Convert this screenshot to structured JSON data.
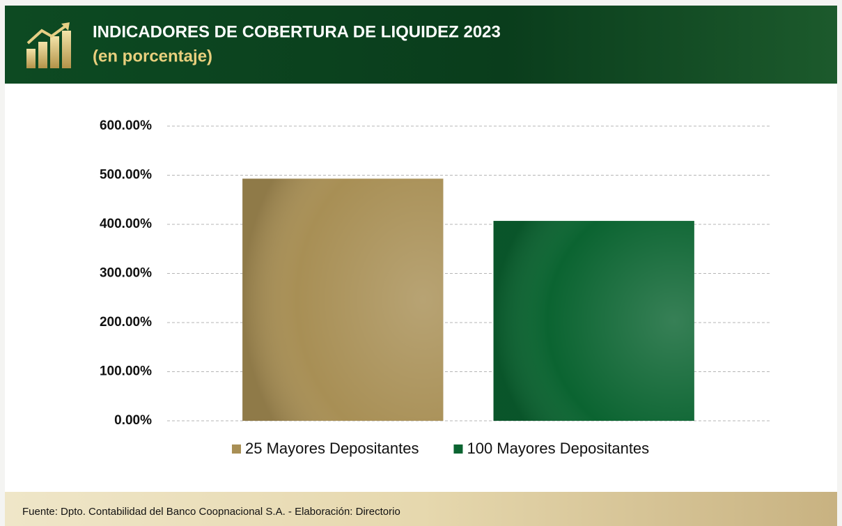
{
  "chart_data": {
    "type": "bar",
    "title": "INDICADORES DE COBERTURA DE LIQUIDEZ 2023",
    "subtitle": "(en porcentaje)",
    "categories": [
      null
    ],
    "series": [
      {
        "name": "25 Mayores Depositantes",
        "color": "#a88f55",
        "values": [
          493
        ]
      },
      {
        "name": "100 Mayores Depositantes",
        "color": "#0b6431",
        "values": [
          407
        ]
      }
    ],
    "ylim": [
      0,
      600
    ],
    "yticks": [
      {
        "value": 0,
        "label": "0.00%"
      },
      {
        "value": 100,
        "label": "100.00%"
      },
      {
        "value": 200,
        "label": "200.00%"
      },
      {
        "value": 300,
        "label": "300.00%"
      },
      {
        "value": 400,
        "label": "400.00%"
      },
      {
        "value": 500,
        "label": "500.00%"
      },
      {
        "value": 600,
        "label": "600.00%"
      }
    ],
    "grid": true,
    "legend": "bottom",
    "footnote": "Fuente: Dpto. Contabilidad del Banco Coopnacional S.A. - Elaboración: Directorio"
  }
}
